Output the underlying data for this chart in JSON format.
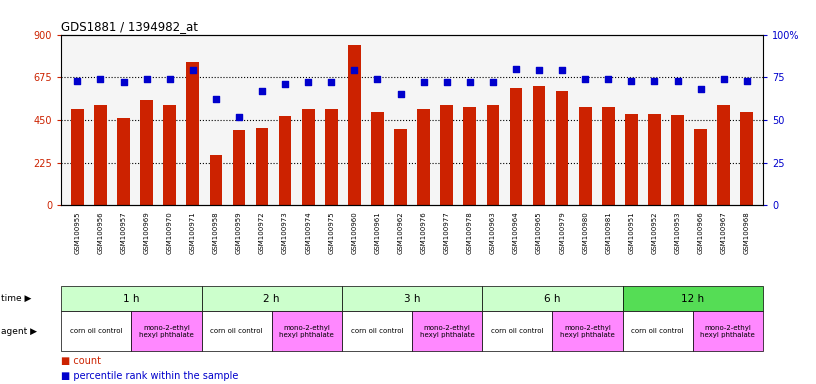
{
  "title": "GDS1881 / 1394982_at",
  "samples": [
    "GSM100955",
    "GSM100956",
    "GSM100957",
    "GSM100969",
    "GSM100970",
    "GSM100971",
    "GSM100958",
    "GSM100959",
    "GSM100972",
    "GSM100973",
    "GSM100974",
    "GSM100975",
    "GSM100960",
    "GSM100961",
    "GSM100962",
    "GSM100976",
    "GSM100977",
    "GSM100978",
    "GSM100963",
    "GSM100964",
    "GSM100965",
    "GSM100979",
    "GSM100980",
    "GSM100981",
    "GSM100951",
    "GSM100952",
    "GSM100953",
    "GSM100966",
    "GSM100967",
    "GSM100968"
  ],
  "counts": [
    510,
    530,
    460,
    555,
    530,
    755,
    265,
    395,
    410,
    470,
    510,
    510,
    845,
    490,
    405,
    510,
    530,
    520,
    530,
    620,
    630,
    605,
    520,
    520,
    480,
    480,
    475,
    400,
    530,
    490
  ],
  "percentiles": [
    73,
    74,
    72,
    74,
    74,
    79,
    62,
    52,
    67,
    71,
    72,
    72,
    79,
    74,
    65,
    72,
    72,
    72,
    72,
    80,
    79,
    79,
    74,
    74,
    73,
    73,
    73,
    68,
    74,
    73
  ],
  "ylim_left": [
    0,
    900
  ],
  "ylim_right": [
    0,
    100
  ],
  "yticks_left": [
    0,
    225,
    450,
    675,
    900
  ],
  "yticks_right": [
    0,
    25,
    50,
    75,
    100
  ],
  "ytick_labels_left": [
    "0",
    "225",
    "450",
    "675",
    "900"
  ],
  "ytick_labels_right": [
    "0",
    "25",
    "50",
    "75",
    "100%"
  ],
  "bar_color": "#cc2200",
  "dot_color": "#0000cc",
  "chart_bg": "#f5f5f5",
  "time_groups": [
    {
      "label": "1 h",
      "start": 0,
      "end": 6,
      "color": "#ccffcc"
    },
    {
      "label": "2 h",
      "start": 6,
      "end": 12,
      "color": "#ccffcc"
    },
    {
      "label": "3 h",
      "start": 12,
      "end": 18,
      "color": "#ccffcc"
    },
    {
      "label": "6 h",
      "start": 18,
      "end": 24,
      "color": "#ccffcc"
    },
    {
      "label": "12 h",
      "start": 24,
      "end": 30,
      "color": "#55dd55"
    }
  ],
  "agent_groups": [
    {
      "label": "corn oil control",
      "start": 0,
      "end": 3,
      "color": "#ffffff"
    },
    {
      "label": "mono-2-ethyl\nhexyl phthalate",
      "start": 3,
      "end": 6,
      "color": "#ff88ff"
    },
    {
      "label": "corn oil control",
      "start": 6,
      "end": 9,
      "color": "#ffffff"
    },
    {
      "label": "mono-2-ethyl\nhexyl phthalate",
      "start": 9,
      "end": 12,
      "color": "#ff88ff"
    },
    {
      "label": "corn oil control",
      "start": 12,
      "end": 15,
      "color": "#ffffff"
    },
    {
      "label": "mono-2-ethyl\nhexyl phthalate",
      "start": 15,
      "end": 18,
      "color": "#ff88ff"
    },
    {
      "label": "corn oil control",
      "start": 18,
      "end": 21,
      "color": "#ffffff"
    },
    {
      "label": "mono-2-ethyl\nhexyl phthalate",
      "start": 21,
      "end": 24,
      "color": "#ff88ff"
    },
    {
      "label": "corn oil control",
      "start": 24,
      "end": 27,
      "color": "#ffffff"
    },
    {
      "label": "mono-2-ethyl\nhexyl phthalate",
      "start": 27,
      "end": 30,
      "color": "#ff88ff"
    }
  ],
  "legend_count_color": "#cc2200",
  "legend_pct_color": "#0000cc"
}
